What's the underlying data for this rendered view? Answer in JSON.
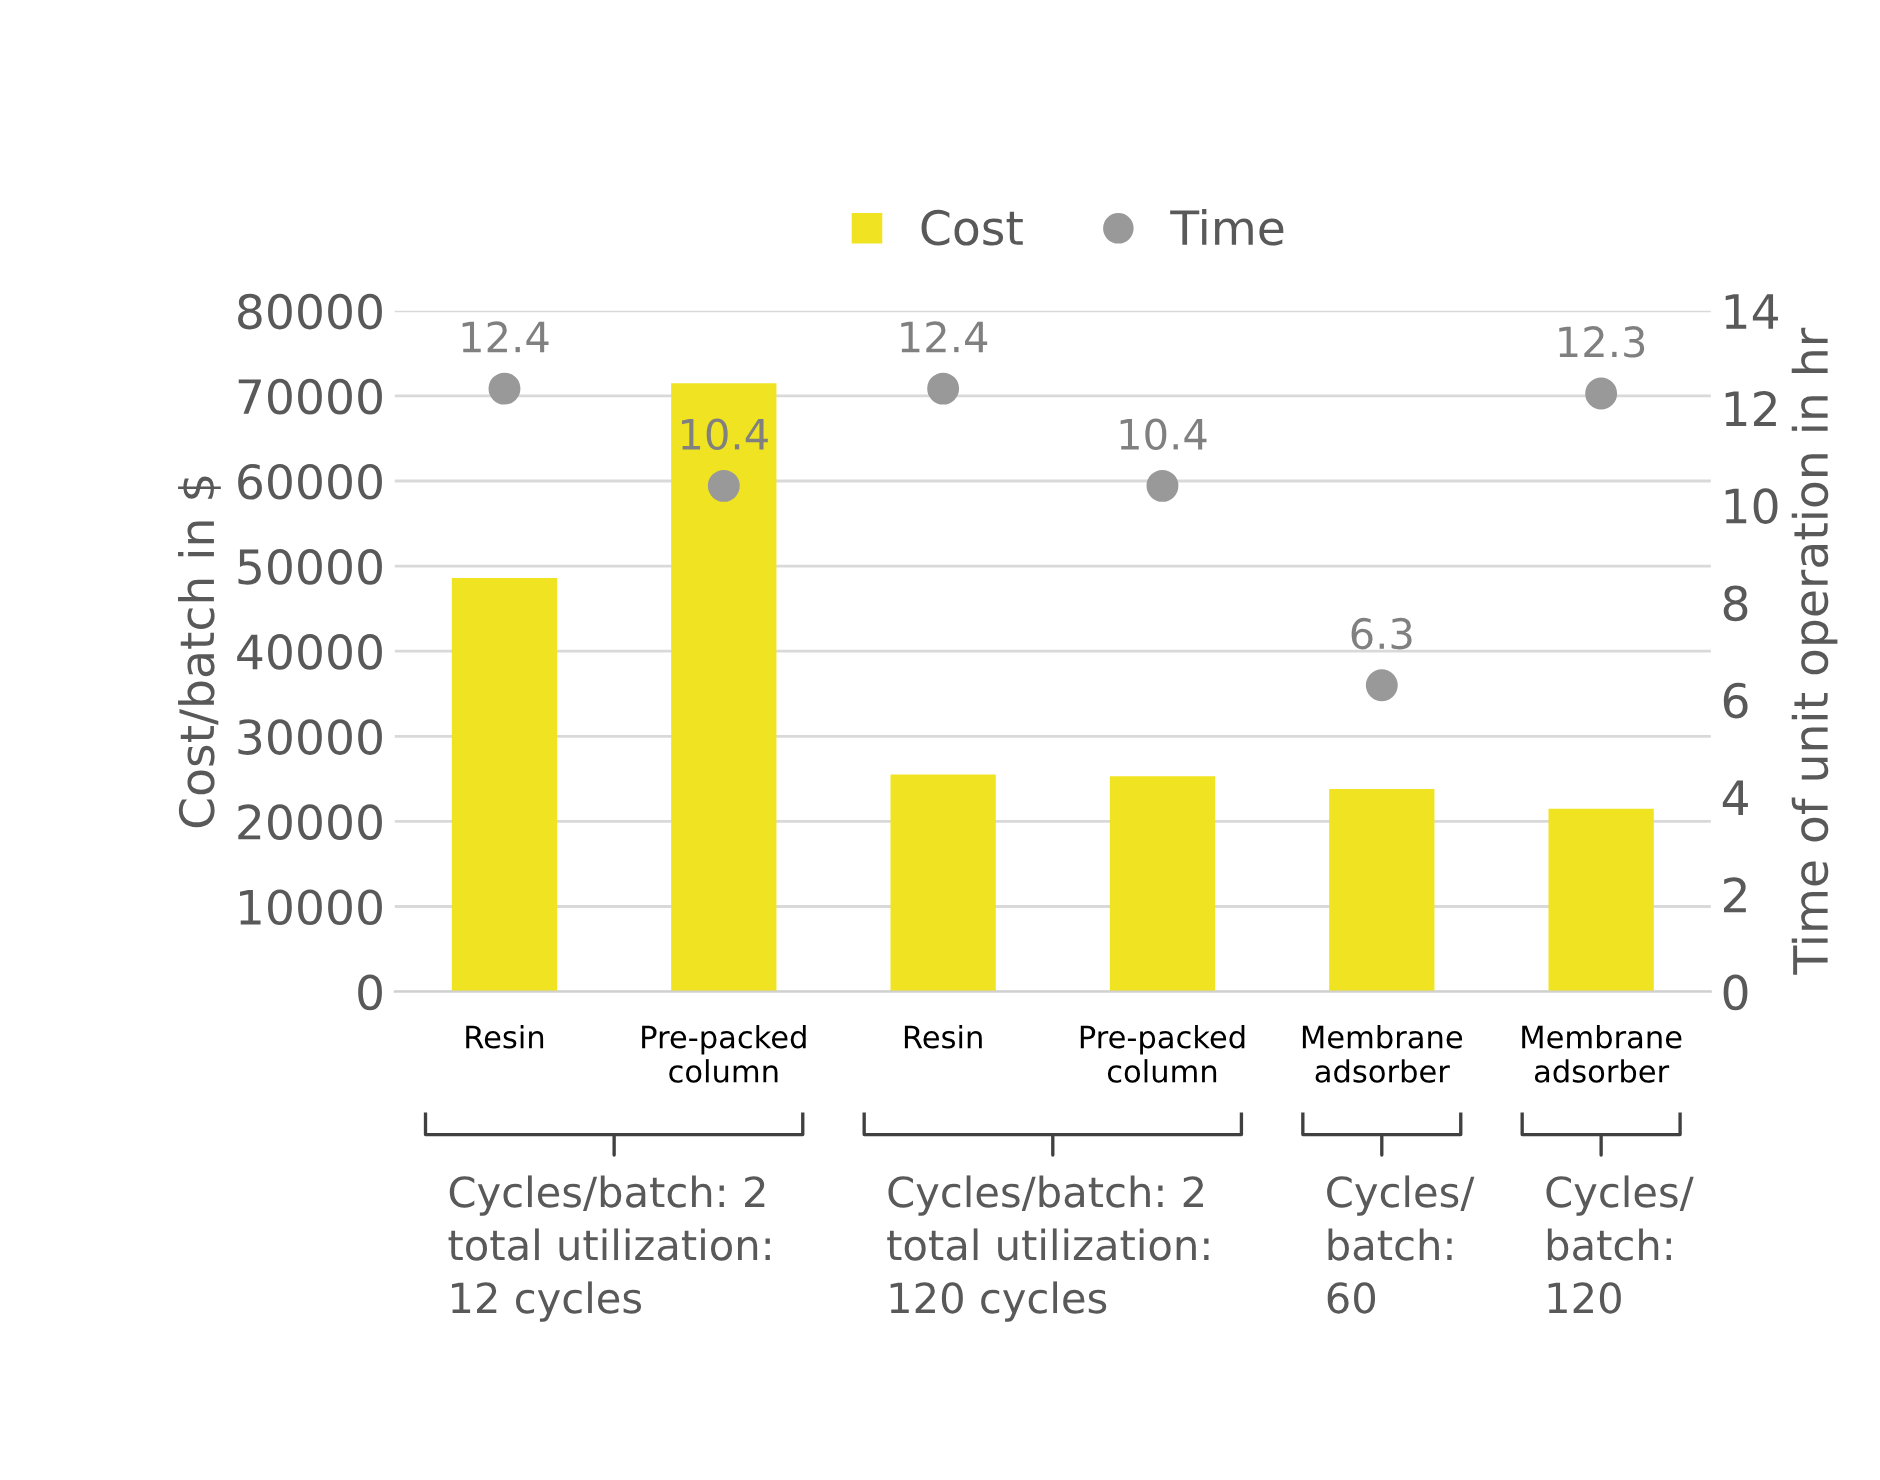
{
  "chart_data": {
    "type": "bar",
    "categories": [
      "Resin",
      "Pre-packed\ncolumn",
      "Resin",
      "Pre-packed\ncolumn",
      "Membrane\nadsorber",
      "Membrane\nadsorber"
    ],
    "series": [
      {
        "name": "Cost",
        "color": "#f0e321",
        "values": [
          48600,
          71500,
          25500,
          25300,
          23800,
          21500
        ]
      },
      {
        "name": "Time",
        "type": "scatter",
        "axis": "y2",
        "color": "#999999",
        "values": [
          12.4,
          10.4,
          12.4,
          10.4,
          6.3,
          12.3
        ],
        "data_labels": true
      }
    ],
    "ylabel": "Cost/batch in $",
    "y2label": "Time of unit operation in hr",
    "ylim": [
      0,
      80000
    ],
    "yticks": [
      0,
      10000,
      20000,
      30000,
      40000,
      50000,
      60000,
      70000,
      80000
    ],
    "y2lim": [
      0,
      14
    ],
    "y2ticks": [
      0,
      2,
      4,
      6,
      8,
      10,
      12,
      14
    ],
    "grid": "y",
    "legend": "top",
    "marker": "circle",
    "annotations": [
      "Cycles/batch: 2\ntotal utilization:\n12 cycles",
      "Cycles/batch: 2\ntotal utilization:\n120 cycles",
      "Cycles/\nbatch:\n60",
      "Cycles/\nbatch:\n120"
    ]
  }
}
